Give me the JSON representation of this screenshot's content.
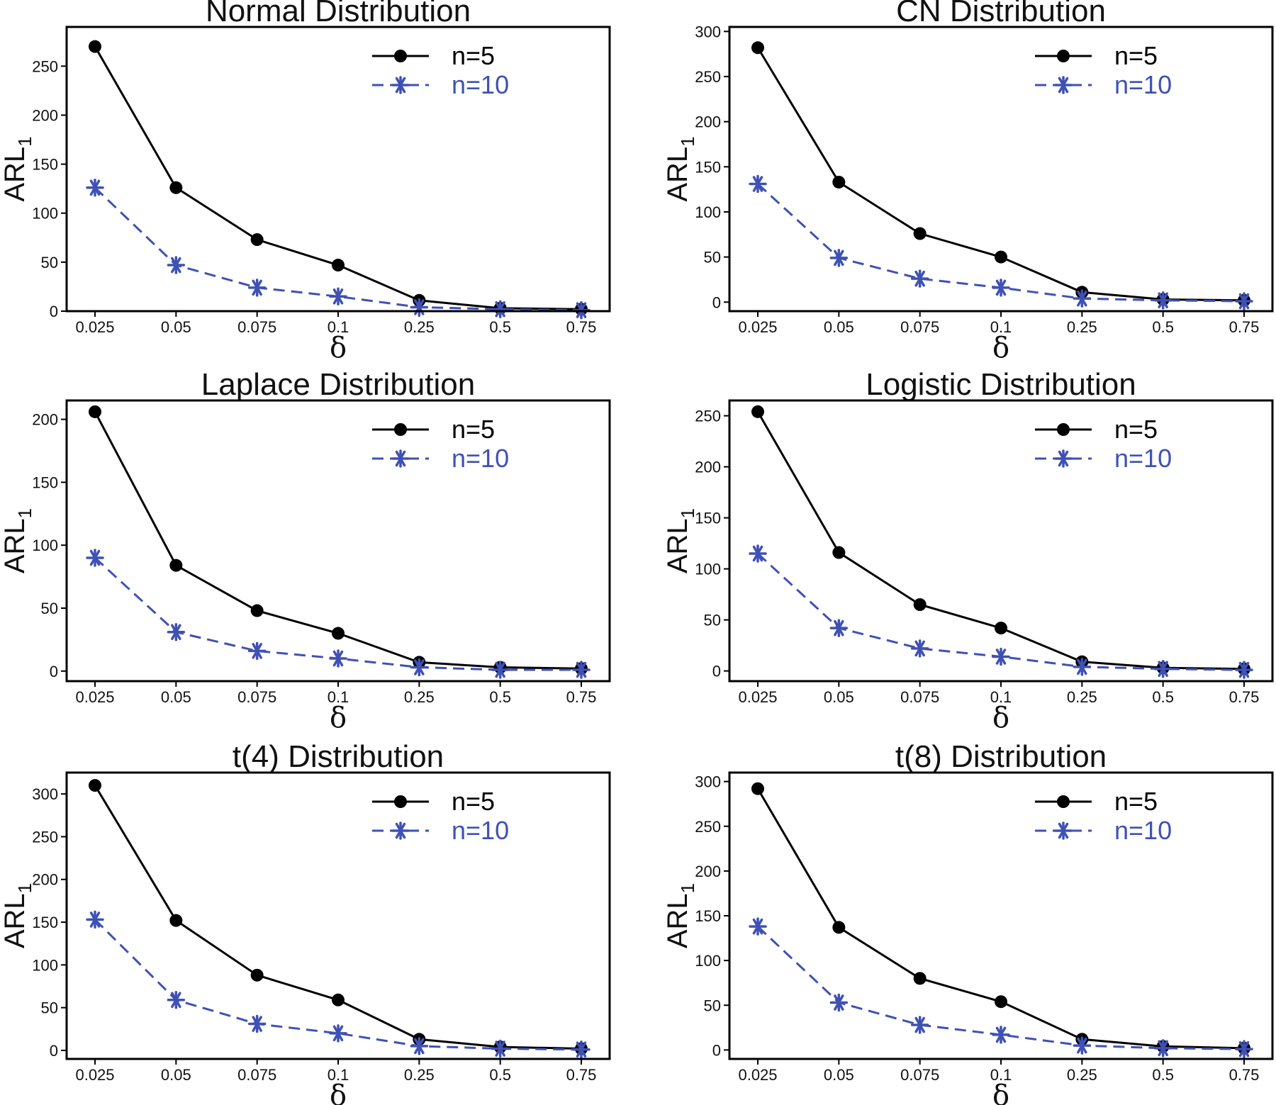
{
  "figure": {
    "series_styles": [
      {
        "color": "#000000",
        "dash": "solid",
        "marker": "circle"
      },
      {
        "color": "#3F51B5",
        "dash": "dashed",
        "marker": "asterisk"
      }
    ]
  },
  "chart_data": [
    {
      "type": "line",
      "title": "Normal Distribution",
      "xlabel": "δ",
      "ylabel": "ARL",
      "ylabel_subscript": "1",
      "categories": [
        "0.025",
        "0.05",
        "0.075",
        "0.1",
        "0.25",
        "0.5",
        "0.75"
      ],
      "ylim": [
        0,
        290
      ],
      "yticks": [
        0,
        50,
        100,
        150,
        200,
        250
      ],
      "legend_position": "top-right",
      "series": [
        {
          "name": "n=5",
          "values": [
            270,
            126,
            73,
            47,
            11,
            3,
            2
          ]
        },
        {
          "name": "n=10",
          "values": [
            126,
            47,
            24,
            15,
            4,
            2,
            1
          ]
        }
      ]
    },
    {
      "type": "line",
      "title": "CN Distribution",
      "xlabel": "δ",
      "ylabel": "ARL",
      "ylabel_subscript": "1",
      "categories": [
        "0.025",
        "0.05",
        "0.075",
        "0.1",
        "0.25",
        "0.5",
        "0.75"
      ],
      "ylim": [
        -10,
        305
      ],
      "yticks": [
        0,
        50,
        100,
        150,
        200,
        250,
        300
      ],
      "legend_position": "top-right",
      "series": [
        {
          "name": "n=5",
          "values": [
            282,
            133,
            76,
            50,
            11,
            3,
            2
          ]
        },
        {
          "name": "n=10",
          "values": [
            131,
            49,
            26,
            16,
            4,
            2,
            1
          ]
        }
      ]
    },
    {
      "type": "line",
      "title": "Laplace Distribution",
      "xlabel": "δ",
      "ylabel": "ARL",
      "ylabel_subscript": "1",
      "categories": [
        "0.025",
        "0.05",
        "0.075",
        "0.1",
        "0.25",
        "0.5",
        "0.75"
      ],
      "ylim": [
        -8,
        215
      ],
      "yticks": [
        0,
        50,
        100,
        150,
        200
      ],
      "legend_position": "top-right",
      "series": [
        {
          "name": "n=5",
          "values": [
            206,
            84,
            48,
            30,
            7,
            3,
            2
          ]
        },
        {
          "name": "n=10",
          "values": [
            90,
            31,
            16,
            10,
            3,
            1,
            1
          ]
        }
      ]
    },
    {
      "type": "line",
      "title": "Logistic Distribution",
      "xlabel": "δ",
      "ylabel": "ARL",
      "ylabel_subscript": "1",
      "categories": [
        "0.025",
        "0.05",
        "0.075",
        "0.1",
        "0.25",
        "0.5",
        "0.75"
      ],
      "ylim": [
        -10,
        265
      ],
      "yticks": [
        0,
        50,
        100,
        150,
        200,
        250
      ],
      "legend_position": "top-right",
      "series": [
        {
          "name": "n=5",
          "values": [
            254,
            116,
            65,
            42,
            9,
            3,
            2
          ]
        },
        {
          "name": "n=10",
          "values": [
            115,
            42,
            22,
            14,
            4,
            2,
            1
          ]
        }
      ]
    },
    {
      "type": "line",
      "title": "t(4) Distribution",
      "xlabel": "δ",
      "ylabel": "ARL",
      "ylabel_subscript": "1",
      "categories": [
        "0.025",
        "0.05",
        "0.075",
        "0.1",
        "0.25",
        "0.5",
        "0.75"
      ],
      "ylim": [
        -10,
        325
      ],
      "yticks": [
        0,
        50,
        100,
        150,
        200,
        250,
        300
      ],
      "legend_position": "top-right",
      "series": [
        {
          "name": "n=5",
          "values": [
            310,
            152,
            88,
            59,
            13,
            4,
            2
          ]
        },
        {
          "name": "n=10",
          "values": [
            153,
            59,
            31,
            20,
            5,
            2,
            1
          ]
        }
      ]
    },
    {
      "type": "line",
      "title": "t(8) Distribution",
      "xlabel": "δ",
      "ylabel": "ARL",
      "ylabel_subscript": "1",
      "categories": [
        "0.025",
        "0.05",
        "0.075",
        "0.1",
        "0.25",
        "0.5",
        "0.75"
      ],
      "ylim": [
        -10,
        310
      ],
      "yticks": [
        0,
        50,
        100,
        150,
        200,
        250,
        300
      ],
      "legend_position": "top-right",
      "series": [
        {
          "name": "n=5",
          "values": [
            292,
            137,
            80,
            54,
            12,
            4,
            2
          ]
        },
        {
          "name": "n=10",
          "values": [
            138,
            53,
            28,
            17,
            5,
            2,
            1
          ]
        }
      ]
    }
  ]
}
